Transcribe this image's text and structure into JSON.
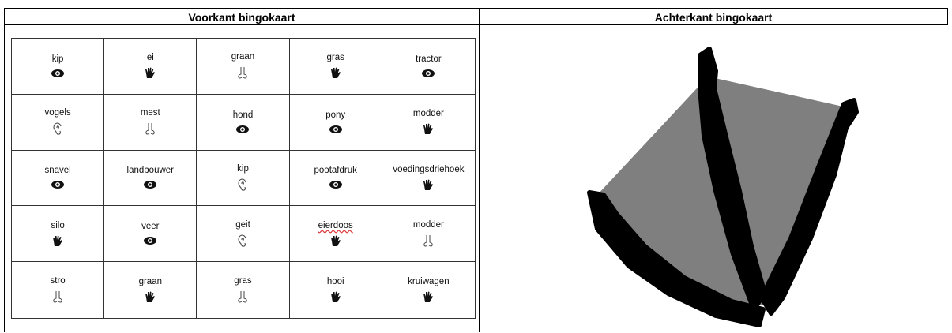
{
  "header": {
    "front": "Voorkant bingokaart",
    "back": "Achterkant bingokaart"
  },
  "table": {
    "rows": [
      [
        "kip",
        "ei",
        "graan",
        "gras",
        "tractor"
      ],
      [
        "vogels",
        "mest",
        "hond",
        "pony",
        "modder"
      ],
      [
        "snavel",
        "landbouwer",
        "kip",
        "pootafdruk",
        "voedingsdriehoek"
      ],
      [
        "silo",
        "veer",
        "geit",
        "eierdoos",
        "modder"
      ],
      [
        "stro",
        "graan",
        "gras",
        "hooi",
        "kruiwagen"
      ]
    ]
  }
}
